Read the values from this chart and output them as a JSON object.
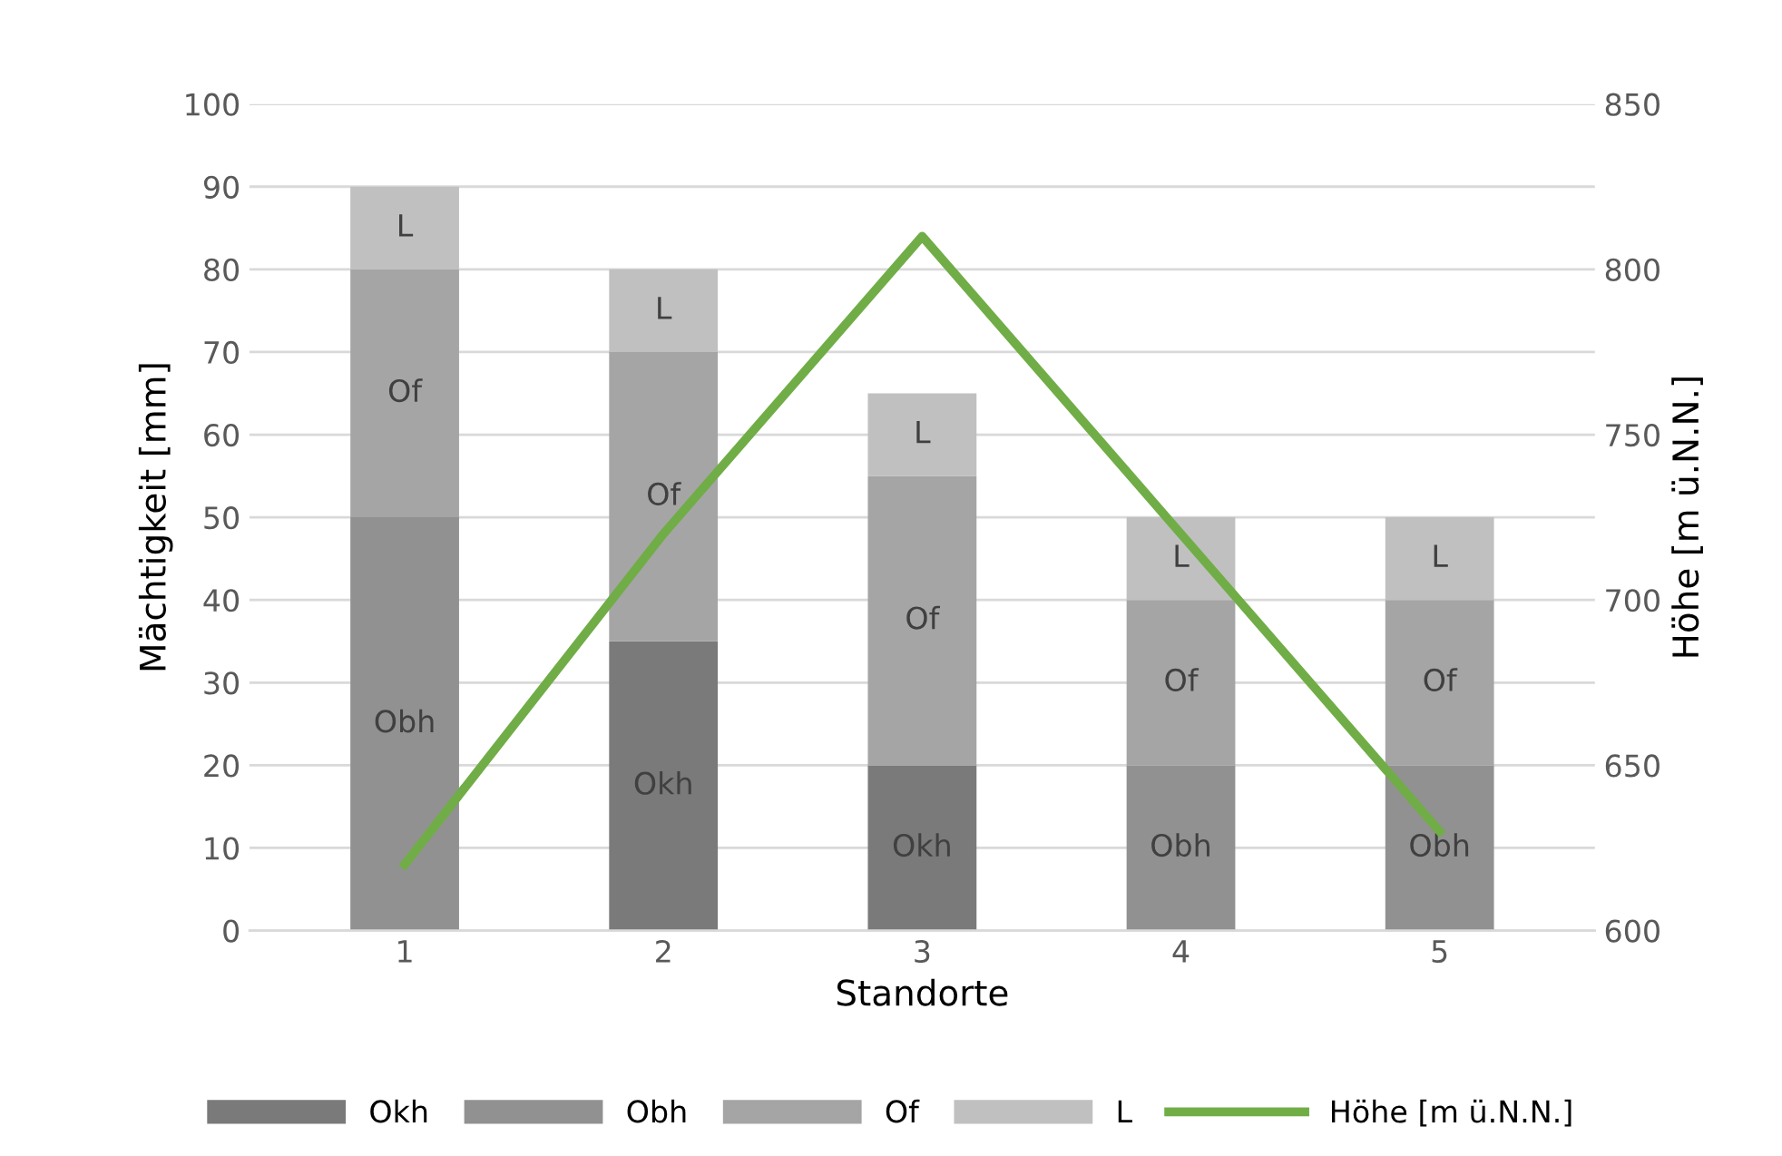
{
  "chart_data": {
    "type": "bar",
    "stacked": true,
    "xlabel": "Standorte",
    "ylabel": "Mächtigkeit [mm]",
    "y2label": "Höhe [m ü.N.N.]",
    "categories": [
      "1",
      "2",
      "3",
      "4",
      "5"
    ],
    "series": [
      {
        "name": "Okh",
        "color": "#7a7a7a",
        "values": [
          0,
          35,
          20,
          0,
          0
        ],
        "value_labels": [
          null,
          "Okh",
          "Okh",
          null,
          null
        ]
      },
      {
        "name": "Obh",
        "color": "#919191",
        "values": [
          50,
          0,
          0,
          20,
          20
        ],
        "value_labels": [
          "Obh",
          null,
          null,
          "Obh",
          "Obh"
        ]
      },
      {
        "name": "Of",
        "color": "#a5a5a5",
        "values": [
          30,
          35,
          35,
          20,
          20
        ],
        "value_labels": [
          "Of",
          "Of",
          "Of",
          "Of",
          "Of"
        ]
      },
      {
        "name": "L",
        "color": "#c0c0c0",
        "values": [
          10,
          10,
          10,
          10,
          10
        ],
        "value_labels": [
          "L",
          "L",
          "L",
          "L",
          "L"
        ]
      },
      {
        "name": "Höhe [m ü.N.N.]",
        "type": "line",
        "axis": "y2",
        "color": "#70ad47",
        "values": [
          620,
          720,
          810,
          720,
          630
        ]
      }
    ],
    "ylim": [
      0,
      100
    ],
    "yticks": [
      0,
      10,
      20,
      30,
      40,
      50,
      60,
      70,
      80,
      90,
      100
    ],
    "y2lim": [
      600,
      850
    ],
    "y2ticks": [
      600,
      650,
      700,
      750,
      800,
      850
    ],
    "grid": "y",
    "legend": "bottom",
    "marker": "none",
    "line_style": "solid"
  }
}
